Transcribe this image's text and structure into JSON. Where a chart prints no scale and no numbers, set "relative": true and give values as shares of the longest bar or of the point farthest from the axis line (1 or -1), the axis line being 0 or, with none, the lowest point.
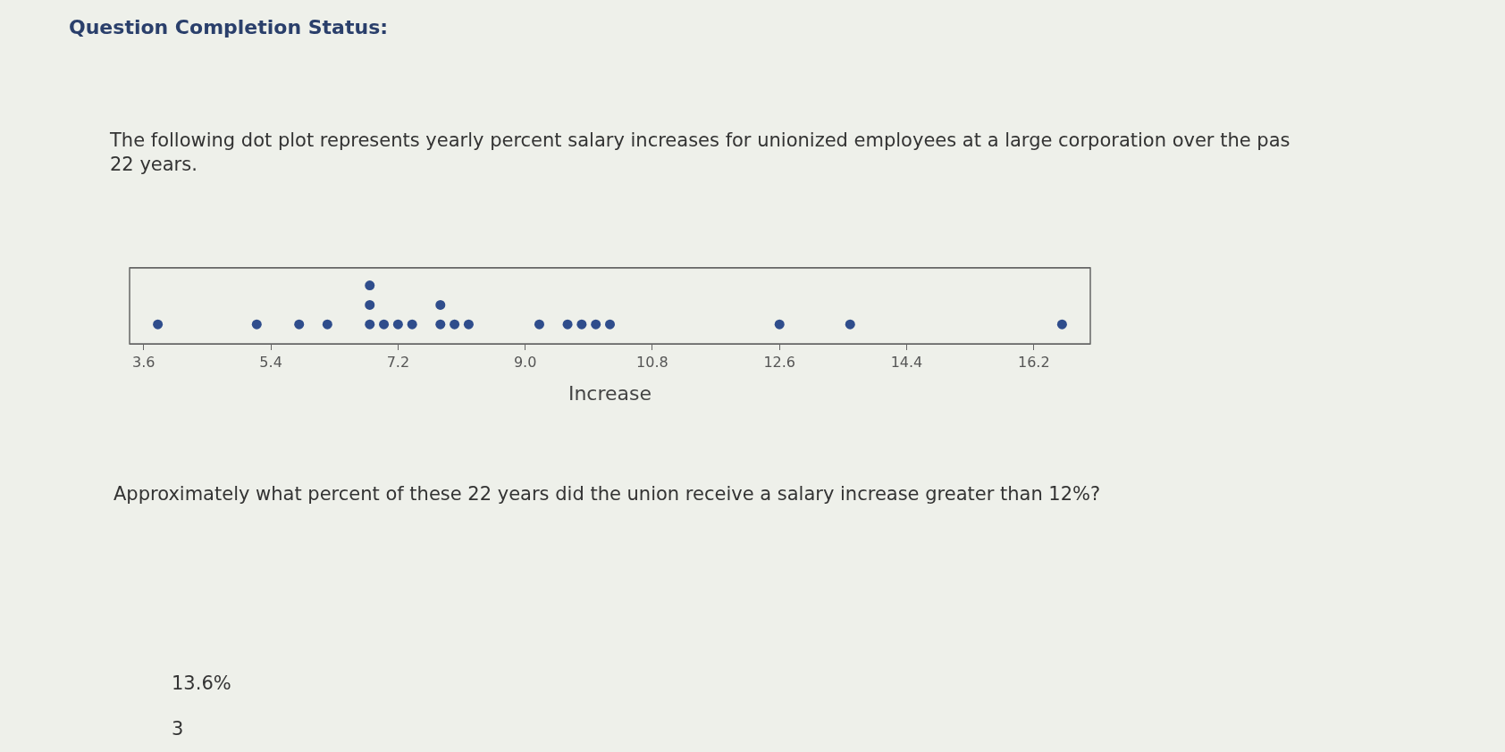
{
  "chart_data": {
    "type": "scatter",
    "title": "Question Completion Status:",
    "subtitle": "The following dot plot represents yearly percent salary increases for unionized employees at a large corporation over the pas 22 years.",
    "xlabel": "Increase",
    "annotations": [
      "Approximately what percent of these 22 years did the union receive a salary increase greater than 12%?",
      "13.6%",
      "3"
    ],
    "x": [
      3.8,
      5.2,
      5.8,
      6.2,
      6.8,
      6.8,
      6.8,
      7.0,
      7.2,
      7.4,
      7.8,
      7.8,
      8.0,
      8.2,
      9.2,
      9.6,
      9.8,
      10.0,
      10.2,
      12.6,
      13.6,
      16.6
    ],
    "values": [
      0.333,
      0.333,
      0.333,
      0.333,
      0.333,
      0.667,
      1,
      0.333,
      0.333,
      0.333,
      0.333,
      0.667,
      0.333,
      0.333,
      0.333,
      0.333,
      0.333,
      0.333,
      0.333,
      0.333,
      0.333,
      0.333
    ],
    "relative": true,
    "color": "#2f4d8c",
    "marker": "circle",
    "xlim": [
      3.4,
      17.0
    ],
    "xticks": [
      3.6,
      5.4,
      7.2,
      {
        "value": 9.0,
        "label": "9.0"
      },
      10.8,
      12.6,
      14.4,
      16.2
    ],
    "grid": false,
    "legend": false
  }
}
